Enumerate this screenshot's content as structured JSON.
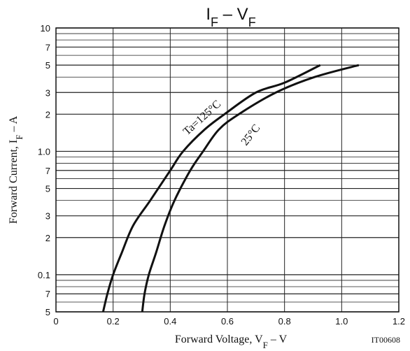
{
  "chart_data": {
    "type": "line",
    "title": [
      "I",
      "F",
      " – ",
      "V",
      "F"
    ],
    "x_label": [
      "Forward Voltage, V",
      "F",
      " – V"
    ],
    "y_label": [
      "Forward Current, I",
      "F",
      " – A"
    ],
    "annotation": "IT00608",
    "log_y": true,
    "grid": true,
    "xlim": [
      0,
      1.2
    ],
    "xticks": [
      0,
      0.2,
      0.4,
      0.6,
      0.8,
      {
        "value": 1.0,
        "label": "1.0"
      },
      1.2
    ],
    "ylim": [
      0.05,
      10
    ],
    "yticks": [
      {
        "value": 0.05,
        "label": "5"
      },
      {
        "value": 0.07,
        "label": "7"
      },
      0.1,
      {
        "value": 0.2,
        "label": "2"
      },
      {
        "value": 0.3,
        "label": "3"
      },
      {
        "value": 0.5,
        "label": "5"
      },
      {
        "value": 0.7,
        "label": "7"
      },
      {
        "value": 1,
        "label": "1.0"
      },
      2,
      3,
      5,
      7,
      10
    ],
    "y_minor_ticks": [
      0.06,
      0.08,
      0.09,
      0.4,
      0.6,
      0.8,
      0.9,
      4,
      6,
      8,
      9
    ],
    "series": [
      {
        "name": "Ta=125°C",
        "color": "#111111",
        "x": [
          0.165,
          0.18,
          0.2,
          0.23,
          0.27,
          0.33,
          0.4,
          0.445,
          0.52,
          0.59,
          0.7,
          0.8,
          0.925
        ],
        "values": [
          0.05,
          0.07,
          0.1,
          0.15,
          0.25,
          0.4,
          0.7,
          1.0,
          1.5,
          2,
          3,
          3.6,
          5
        ]
      },
      {
        "name": "25°C",
        "color": "#111111",
        "x": [
          0.302,
          0.31,
          0.325,
          0.35,
          0.38,
          0.415,
          0.47,
          0.515,
          0.57,
          0.64,
          0.77,
          0.905,
          1.06
        ],
        "values": [
          0.05,
          0.07,
          0.1,
          0.15,
          0.25,
          0.4,
          0.7,
          1.0,
          1.5,
          2,
          3,
          4,
          5
        ]
      }
    ]
  }
}
